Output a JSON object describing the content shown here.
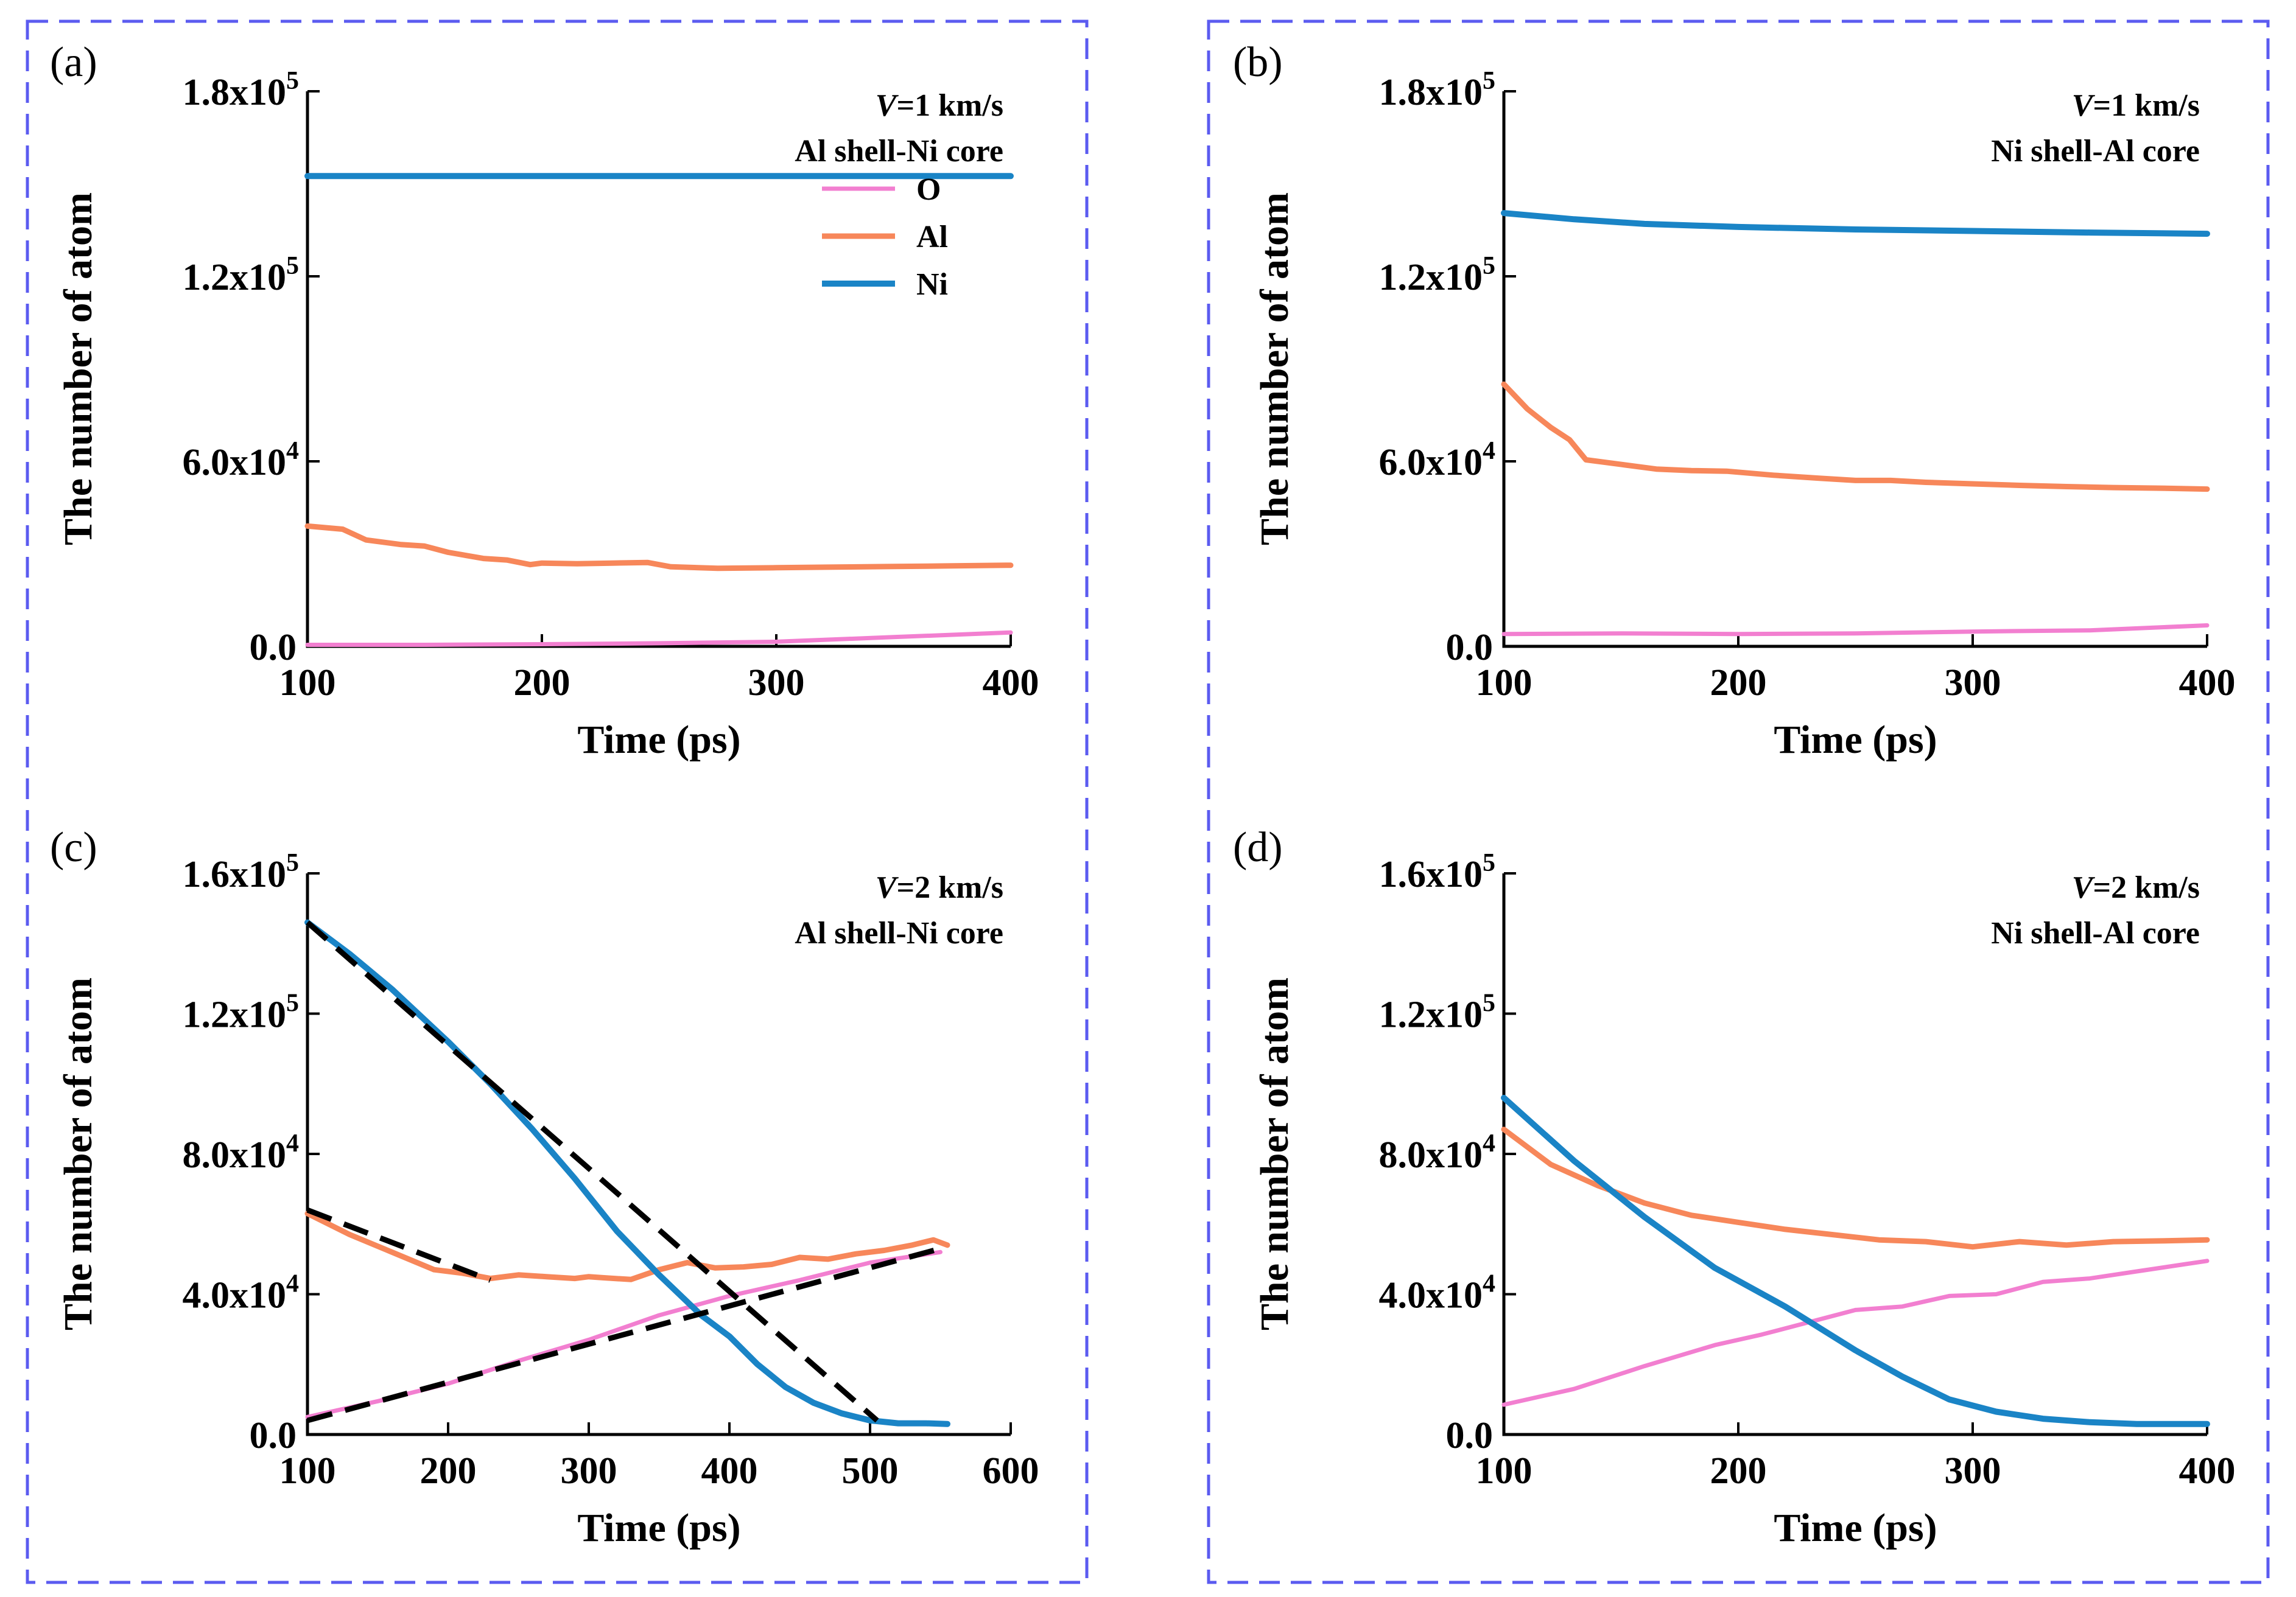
{
  "colors": {
    "O": "#f27fd0",
    "Al": "#f7875a",
    "Ni": "#1a84c6",
    "fit": "#000000",
    "frame": "#5b5bf0"
  },
  "chart_data": [
    {
      "panel": "(a)",
      "type": "line",
      "xlabel": "Time (ps)",
      "ylabel": "The number of atom",
      "xlim": [
        100,
        400
      ],
      "ylim": [
        0,
        180000
      ],
      "xticks": [
        100,
        200,
        300,
        400
      ],
      "xtick_labels": [
        "100",
        "200",
        "300",
        "400"
      ],
      "yticks": [
        0,
        60000,
        120000,
        180000
      ],
      "ytick_labels": [
        {
          "base": "0.0",
          "exp": ""
        },
        {
          "base": "6.0x10",
          "exp": "4"
        },
        {
          "base": "1.2x10",
          "exp": "5"
        },
        {
          "base": "1.8x10",
          "exp": "5"
        }
      ],
      "annotation": {
        "italic": "V",
        "rest": "=1 km/s",
        "line2": "Al shell-Ni core"
      },
      "legend": [
        "O",
        "Al",
        "Ni"
      ],
      "series": [
        {
          "name": "O",
          "x": [
            100,
            150,
            200,
            250,
            300,
            350,
            400
          ],
          "values": [
            500,
            500,
            700,
            1000,
            1500,
            3000,
            4500
          ]
        },
        {
          "name": "Al",
          "x": [
            100,
            115,
            125,
            140,
            150,
            160,
            175,
            185,
            195,
            200,
            215,
            230,
            245,
            255,
            275,
            300,
            325,
            350,
            375,
            400
          ],
          "values": [
            39000,
            38000,
            34500,
            33000,
            32500,
            30500,
            28500,
            28000,
            26500,
            27000,
            26800,
            27000,
            27200,
            25800,
            25300,
            25500,
            25700,
            25900,
            26100,
            26300
          ]
        },
        {
          "name": "Ni",
          "x": [
            100,
            200,
            300,
            400
          ],
          "values": [
            152500,
            152500,
            152500,
            152500
          ]
        }
      ],
      "fits": []
    },
    {
      "panel": "(b)",
      "type": "line",
      "xlabel": "Time (ps)",
      "ylabel": "The number of atom",
      "xlim": [
        100,
        400
      ],
      "ylim": [
        0,
        180000
      ],
      "xticks": [
        100,
        200,
        300,
        400
      ],
      "xtick_labels": [
        "100",
        "200",
        "300",
        "400"
      ],
      "yticks": [
        0,
        60000,
        120000,
        180000
      ],
      "ytick_labels": [
        {
          "base": "0.0",
          "exp": ""
        },
        {
          "base": "6.0x10",
          "exp": "4"
        },
        {
          "base": "1.2x10",
          "exp": "5"
        },
        {
          "base": "1.8x10",
          "exp": "5"
        }
      ],
      "annotation": {
        "italic": "V",
        "rest": "=1 km/s",
        "line2": "Ni shell-Al core"
      },
      "legend": [],
      "series": [
        {
          "name": "O",
          "x": [
            100,
            150,
            200,
            250,
            300,
            350,
            400
          ],
          "values": [
            4000,
            4200,
            4000,
            4200,
            4800,
            5200,
            6800
          ]
        },
        {
          "name": "Al",
          "x": [
            100,
            110,
            120,
            128,
            135,
            150,
            165,
            180,
            195,
            215,
            235,
            250,
            265,
            280,
            300,
            320,
            340,
            360,
            380,
            400
          ],
          "values": [
            85000,
            77000,
            71000,
            67000,
            60500,
            59000,
            57500,
            57000,
            56800,
            55500,
            54500,
            53800,
            53800,
            53200,
            52700,
            52200,
            51800,
            51500,
            51300,
            51000
          ]
        },
        {
          "name": "Ni",
          "x": [
            100,
            130,
            160,
            200,
            250,
            300,
            350,
            400
          ],
          "values": [
            140500,
            138500,
            137000,
            136000,
            135200,
            134700,
            134200,
            133800
          ]
        }
      ],
      "fits": []
    },
    {
      "panel": "(c)",
      "type": "line",
      "xlabel": "Time (ps)",
      "ylabel": "The number of atom",
      "xlim": [
        100,
        600
      ],
      "ylim": [
        0,
        160000
      ],
      "xticks": [
        100,
        200,
        300,
        400,
        500,
        600
      ],
      "xtick_labels": [
        "100",
        "200",
        "300",
        "400",
        "500",
        "600"
      ],
      "yticks": [
        0,
        40000,
        80000,
        120000,
        160000
      ],
      "ytick_labels": [
        {
          "base": "0.0",
          "exp": ""
        },
        {
          "base": "4.0x10",
          "exp": "4"
        },
        {
          "base": "8.0x10",
          "exp": "4"
        },
        {
          "base": "1.2x10",
          "exp": "5"
        },
        {
          "base": "1.6x10",
          "exp": "5"
        }
      ],
      "annotation": {
        "italic": "V",
        "rest": "=2 km/s",
        "line2": "Al shell-Ni core"
      },
      "legend": [],
      "series": [
        {
          "name": "O",
          "x": [
            100,
            150,
            200,
            250,
            300,
            350,
            400,
            450,
            500,
            550
          ],
          "values": [
            5000,
            9500,
            14500,
            21000,
            27000,
            34000,
            39500,
            44000,
            49000,
            52000
          ]
        },
        {
          "name": "Al",
          "x": [
            100,
            130,
            160,
            190,
            210,
            230,
            250,
            270,
            290,
            300,
            310,
            330,
            350,
            370,
            390,
            410,
            430,
            450,
            470,
            490,
            510,
            530,
            545,
            555
          ],
          "values": [
            63000,
            57000,
            52000,
            47000,
            46000,
            44500,
            45500,
            45000,
            44500,
            45000,
            44700,
            44200,
            47000,
            49000,
            47500,
            47800,
            48500,
            50500,
            50000,
            51500,
            52500,
            54000,
            55500,
            54000
          ]
        },
        {
          "name": "Ni",
          "x": [
            100,
            130,
            160,
            200,
            230,
            260,
            290,
            320,
            350,
            380,
            400,
            420,
            440,
            460,
            480,
            500,
            520,
            540,
            555
          ],
          "values": [
            146000,
            137000,
            127000,
            112000,
            100000,
            87000,
            73000,
            58000,
            45500,
            34000,
            28000,
            20000,
            13500,
            9000,
            6000,
            4000,
            3200,
            3200,
            3000
          ]
        }
      ],
      "fits": [
        {
          "from": [
            100,
            146000
          ],
          "to": [
            505,
            4000
          ]
        },
        {
          "from": [
            100,
            64000
          ],
          "to": [
            230,
            44000
          ]
        },
        {
          "from": [
            100,
            4000
          ],
          "to": [
            550,
            53000
          ]
        }
      ]
    },
    {
      "panel": "(d)",
      "type": "line",
      "xlabel": "Time (ps)",
      "ylabel": "The number of atom",
      "xlim": [
        100,
        400
      ],
      "ylim": [
        0,
        160000
      ],
      "xticks": [
        100,
        200,
        300,
        400
      ],
      "xtick_labels": [
        "100",
        "200",
        "300",
        "400"
      ],
      "yticks": [
        0,
        40000,
        80000,
        120000,
        160000
      ],
      "ytick_labels": [
        {
          "base": "0.0",
          "exp": ""
        },
        {
          "base": "4.0x10",
          "exp": "4"
        },
        {
          "base": "8.0x10",
          "exp": "4"
        },
        {
          "base": "1.2x10",
          "exp": "5"
        },
        {
          "base": "1.6x10",
          "exp": "5"
        }
      ],
      "annotation": {
        "italic": "V",
        "rest": "=2 km/s",
        "line2": "Ni shell-Al core"
      },
      "legend": [],
      "series": [
        {
          "name": "O",
          "x": [
            100,
            130,
            160,
            190,
            210,
            230,
            250,
            270,
            290,
            310,
            330,
            350,
            370,
            390,
            400
          ],
          "values": [
            8500,
            13000,
            19500,
            25500,
            28500,
            32000,
            35500,
            36500,
            39500,
            40000,
            43500,
            44500,
            46500,
            48500,
            49500
          ]
        },
        {
          "name": "Al",
          "x": [
            100,
            120,
            140,
            160,
            180,
            200,
            220,
            240,
            260,
            280,
            300,
            320,
            340,
            360,
            380,
            400
          ],
          "values": [
            87000,
            77000,
            71000,
            66000,
            62500,
            60500,
            58500,
            57000,
            55500,
            55000,
            53500,
            55000,
            54000,
            55000,
            55200,
            55500
          ]
        },
        {
          "name": "Ni",
          "x": [
            100,
            130,
            160,
            190,
            220,
            250,
            270,
            290,
            310,
            330,
            350,
            370,
            400
          ],
          "values": [
            96000,
            78000,
            62000,
            47500,
            36500,
            24000,
            16500,
            10000,
            6500,
            4500,
            3500,
            3000,
            3000
          ]
        }
      ],
      "fits": []
    }
  ]
}
